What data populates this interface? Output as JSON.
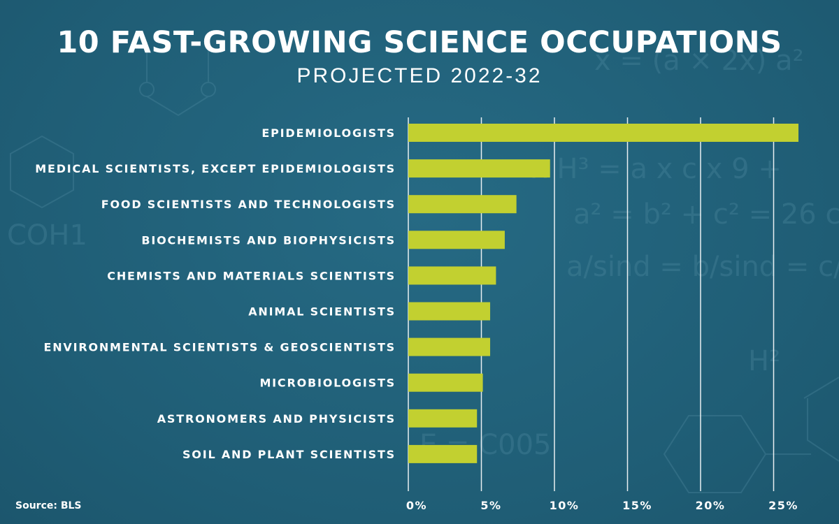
{
  "title": "10 FAST-GROWING SCIENCE OCCUPATIONS",
  "subtitle": "PROJECTED 2022-32",
  "source": "Source: BLS",
  "colors": {
    "background": "#22627b",
    "bar": "#c2d030",
    "grid": "#ffffff",
    "text": "#ffffff"
  },
  "chart_data": {
    "type": "bar",
    "orientation": "horizontal",
    "categories": [
      "EPIDEMIOLOGISTS",
      "MEDICAL SCIENTISTS, EXCEPT EPIDEMIOLOGISTS",
      "FOOD SCIENTISTS AND TECHNOLOGISTS",
      "BIOCHEMISTS AND BIOPHYSICISTS",
      "CHEMISTS AND MATERIALS SCIENTISTS",
      "ANIMAL SCIENTISTS",
      "ENVIRONMENTAL SCIENTISTS & GEOSCIENTISTS",
      "MICROBIOLOGISTS",
      "ASTRONOMERS AND PHYSICISTS",
      "SOIL AND PLANT SCIENTISTS"
    ],
    "values": [
      26.7,
      9.7,
      7.4,
      6.6,
      6.0,
      5.6,
      5.6,
      5.1,
      4.7,
      4.7
    ],
    "xlim": [
      0,
      27
    ],
    "xticks": [
      0,
      5,
      10,
      15,
      20,
      25
    ],
    "xtick_labels": [
      "0%",
      "5%",
      "10%",
      "15%",
      "20%",
      "25%"
    ],
    "grid": "vertical"
  }
}
